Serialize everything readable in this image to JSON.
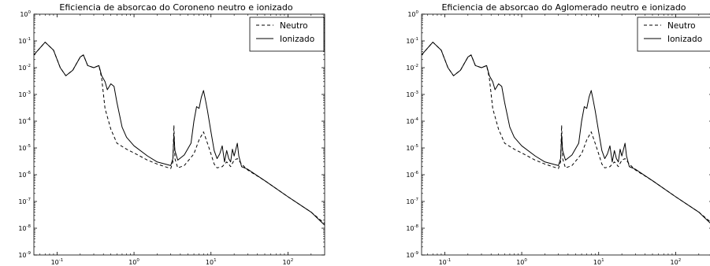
{
  "chart_data": [
    {
      "type": "line",
      "title": "Eficiencia de absorcao do Coroneno neutro e ionizado",
      "xscale": "log",
      "yscale": "log",
      "xlim": [
        0.05,
        300
      ],
      "ylim": [
        1e-09,
        1
      ],
      "grid": false,
      "legend": "top-right",
      "x_ticks": [
        {
          "base": "10",
          "exp": "-1"
        },
        {
          "base": "10",
          "exp": "0"
        },
        {
          "base": "10",
          "exp": "1"
        },
        {
          "base": "10",
          "exp": "2"
        }
      ],
      "y_ticks": [
        {
          "base": "10",
          "exp": "0"
        },
        {
          "base": "10",
          "exp": "-1"
        },
        {
          "base": "10",
          "exp": "-2"
        },
        {
          "base": "10",
          "exp": "-3"
        },
        {
          "base": "10",
          "exp": "-4"
        },
        {
          "base": "10",
          "exp": "-5"
        },
        {
          "base": "10",
          "exp": "-6"
        },
        {
          "base": "10",
          "exp": "-7"
        },
        {
          "base": "10",
          "exp": "-8"
        },
        {
          "base": "10",
          "exp": "-9"
        }
      ],
      "series": [
        {
          "name": "Neutro",
          "style": "dashed",
          "points": [
            [
              0.05,
              0.03
            ],
            [
              0.07,
              0.09
            ],
            [
              0.09,
              0.045
            ],
            [
              0.11,
              0.01
            ],
            [
              0.13,
              0.005
            ],
            [
              0.16,
              0.008
            ],
            [
              0.2,
              0.025
            ],
            [
              0.22,
              0.03
            ],
            [
              0.25,
              0.012
            ],
            [
              0.3,
              0.01
            ],
            [
              0.35,
              0.012
            ],
            [
              0.38,
              0.004
            ],
            [
              0.42,
              0.0003
            ],
            [
              0.5,
              5e-05
            ],
            [
              0.6,
              1.5e-05
            ],
            [
              0.8,
              9e-06
            ],
            [
              1.0,
              6.5e-06
            ],
            [
              1.5,
              3.5e-06
            ],
            [
              2.0,
              2.5e-06
            ],
            [
              3.0,
              1.7e-06
            ],
            [
              3.2,
              3e-06
            ],
            [
              3.3,
              7e-05
            ],
            [
              3.4,
              4e-06
            ],
            [
              3.7,
              1.8e-06
            ],
            [
              4.5,
              2.2e-06
            ],
            [
              6.0,
              6e-06
            ],
            [
              7.0,
              2e-05
            ],
            [
              8.0,
              4e-05
            ],
            [
              9.0,
              1.5e-05
            ],
            [
              10,
              6e-06
            ],
            [
              11,
              2.5e-06
            ],
            [
              12,
              1.8e-06
            ],
            [
              14,
              2e-06
            ],
            [
              16,
              3e-06
            ],
            [
              17,
              2.5e-06
            ],
            [
              18,
              2e-06
            ],
            [
              20,
              3.5e-06
            ],
            [
              22,
              4e-06
            ],
            [
              25,
              2.5e-06
            ],
            [
              30,
              1.5e-06
            ],
            [
              50,
              6e-07
            ],
            [
              100,
              1.5e-07
            ],
            [
              200,
              4e-08
            ],
            [
              300,
              1.5e-08
            ]
          ]
        },
        {
          "name": "Ionizado",
          "style": "solid",
          "points": [
            [
              0.05,
              0.03
            ],
            [
              0.07,
              0.09
            ],
            [
              0.09,
              0.045
            ],
            [
              0.11,
              0.01
            ],
            [
              0.13,
              0.005
            ],
            [
              0.16,
              0.008
            ],
            [
              0.2,
              0.025
            ],
            [
              0.22,
              0.03
            ],
            [
              0.25,
              0.012
            ],
            [
              0.3,
              0.01
            ],
            [
              0.35,
              0.012
            ],
            [
              0.38,
              0.005
            ],
            [
              0.42,
              0.003
            ],
            [
              0.45,
              0.0015
            ],
            [
              0.5,
              0.0025
            ],
            [
              0.55,
              0.002
            ],
            [
              0.6,
              0.0005
            ],
            [
              0.7,
              6e-05
            ],
            [
              0.8,
              2.5e-05
            ],
            [
              1.0,
              1.2e-05
            ],
            [
              1.5,
              5e-06
            ],
            [
              2.0,
              3e-06
            ],
            [
              3.0,
              2.2e-06
            ],
            [
              3.2,
              4e-06
            ],
            [
              3.3,
              3e-05
            ],
            [
              3.4,
              8e-06
            ],
            [
              3.7,
              3.5e-06
            ],
            [
              4.5,
              5.5e-06
            ],
            [
              5.5,
              1.5e-05
            ],
            [
              6.0,
              0.0001
            ],
            [
              6.5,
              0.00035
            ],
            [
              7.0,
              0.0003
            ],
            [
              7.5,
              0.0008
            ],
            [
              8.0,
              0.0014
            ],
            [
              8.5,
              0.0006
            ],
            [
              9.0,
              0.00025
            ],
            [
              10,
              4e-05
            ],
            [
              11,
              8e-06
            ],
            [
              12,
              4e-06
            ],
            [
              13,
              6e-06
            ],
            [
              14,
              1.2e-05
            ],
            [
              15,
              3e-06
            ],
            [
              16,
              8e-06
            ],
            [
              17,
              4e-06
            ],
            [
              18,
              3e-06
            ],
            [
              19,
              9e-06
            ],
            [
              20,
              5e-06
            ],
            [
              22,
              1.5e-05
            ],
            [
              23,
              5e-06
            ],
            [
              25,
              2e-06
            ],
            [
              30,
              1.6e-06
            ],
            [
              50,
              6e-07
            ],
            [
              100,
              1.5e-07
            ],
            [
              200,
              4e-08
            ],
            [
              300,
              1.3e-08
            ]
          ]
        }
      ]
    },
    {
      "type": "line",
      "title": "Eficiencia de absorcao do Aglomerado neutro e ionizado",
      "xscale": "log",
      "yscale": "log",
      "xlim": [
        0.05,
        300
      ],
      "ylim": [
        1e-09,
        1
      ],
      "grid": false,
      "legend": "top-right",
      "x_ticks": [
        {
          "base": "10",
          "exp": "-1"
        },
        {
          "base": "10",
          "exp": "0"
        },
        {
          "base": "10",
          "exp": "1"
        },
        {
          "base": "10",
          "exp": "2"
        }
      ],
      "y_ticks": [
        {
          "base": "10",
          "exp": "0"
        },
        {
          "base": "10",
          "exp": "-1"
        },
        {
          "base": "10",
          "exp": "-2"
        },
        {
          "base": "10",
          "exp": "-3"
        },
        {
          "base": "10",
          "exp": "-4"
        },
        {
          "base": "10",
          "exp": "-5"
        },
        {
          "base": "10",
          "exp": "-6"
        },
        {
          "base": "10",
          "exp": "-7"
        },
        {
          "base": "10",
          "exp": "-8"
        },
        {
          "base": "10",
          "exp": "-9"
        }
      ],
      "series": [
        {
          "name": "Neutro",
          "style": "dashed",
          "points": [
            [
              0.05,
              0.03
            ],
            [
              0.07,
              0.09
            ],
            [
              0.09,
              0.045
            ],
            [
              0.11,
              0.01
            ],
            [
              0.13,
              0.005
            ],
            [
              0.16,
              0.008
            ],
            [
              0.2,
              0.025
            ],
            [
              0.22,
              0.03
            ],
            [
              0.25,
              0.012
            ],
            [
              0.3,
              0.01
            ],
            [
              0.35,
              0.012
            ],
            [
              0.38,
              0.004
            ],
            [
              0.42,
              0.0003
            ],
            [
              0.5,
              5e-05
            ],
            [
              0.6,
              1.5e-05
            ],
            [
              0.8,
              9e-06
            ],
            [
              1.0,
              6.5e-06
            ],
            [
              1.5,
              3.5e-06
            ],
            [
              2.0,
              2.5e-06
            ],
            [
              3.0,
              1.7e-06
            ],
            [
              3.2,
              3e-06
            ],
            [
              3.3,
              7e-05
            ],
            [
              3.4,
              4e-06
            ],
            [
              3.7,
              1.8e-06
            ],
            [
              4.5,
              2.2e-06
            ],
            [
              6.0,
              6e-06
            ],
            [
              7.0,
              2e-05
            ],
            [
              8.0,
              4e-05
            ],
            [
              9.0,
              1.5e-05
            ],
            [
              10,
              6e-06
            ],
            [
              11,
              2.5e-06
            ],
            [
              12,
              1.8e-06
            ],
            [
              14,
              2e-06
            ],
            [
              16,
              3e-06
            ],
            [
              17,
              2.5e-06
            ],
            [
              18,
              2e-06
            ],
            [
              20,
              3.5e-06
            ],
            [
              22,
              4e-06
            ],
            [
              25,
              2.5e-06
            ],
            [
              30,
              1.5e-06
            ],
            [
              50,
              6e-07
            ],
            [
              100,
              1.5e-07
            ],
            [
              200,
              4e-08
            ],
            [
              300,
              1.5e-08
            ]
          ]
        },
        {
          "name": "Ionizado",
          "style": "solid",
          "points": [
            [
              0.05,
              0.03
            ],
            [
              0.07,
              0.09
            ],
            [
              0.09,
              0.045
            ],
            [
              0.11,
              0.01
            ],
            [
              0.13,
              0.005
            ],
            [
              0.16,
              0.008
            ],
            [
              0.2,
              0.025
            ],
            [
              0.22,
              0.03
            ],
            [
              0.25,
              0.012
            ],
            [
              0.3,
              0.01
            ],
            [
              0.35,
              0.012
            ],
            [
              0.38,
              0.005
            ],
            [
              0.42,
              0.003
            ],
            [
              0.45,
              0.0015
            ],
            [
              0.5,
              0.0025
            ],
            [
              0.55,
              0.002
            ],
            [
              0.6,
              0.0005
            ],
            [
              0.7,
              6e-05
            ],
            [
              0.8,
              2.5e-05
            ],
            [
              1.0,
              1.2e-05
            ],
            [
              1.5,
              5e-06
            ],
            [
              2.0,
              3e-06
            ],
            [
              3.0,
              2.2e-06
            ],
            [
              3.2,
              4e-06
            ],
            [
              3.3,
              3e-05
            ],
            [
              3.4,
              8e-06
            ],
            [
              3.7,
              3.5e-06
            ],
            [
              4.5,
              5.5e-06
            ],
            [
              5.5,
              1.5e-05
            ],
            [
              6.0,
              0.0001
            ],
            [
              6.5,
              0.00035
            ],
            [
              7.0,
              0.0003
            ],
            [
              7.5,
              0.0008
            ],
            [
              8.0,
              0.0014
            ],
            [
              8.5,
              0.0006
            ],
            [
              9.0,
              0.00025
            ],
            [
              10,
              4e-05
            ],
            [
              11,
              8e-06
            ],
            [
              12,
              4e-06
            ],
            [
              13,
              6e-06
            ],
            [
              14,
              1.2e-05
            ],
            [
              15,
              3e-06
            ],
            [
              16,
              8e-06
            ],
            [
              17,
              4e-06
            ],
            [
              18,
              3e-06
            ],
            [
              19,
              9e-06
            ],
            [
              20,
              5e-06
            ],
            [
              22,
              1.5e-05
            ],
            [
              23,
              5e-06
            ],
            [
              25,
              2e-06
            ],
            [
              30,
              1.6e-06
            ],
            [
              50,
              6e-07
            ],
            [
              100,
              1.5e-07
            ],
            [
              200,
              4e-08
            ],
            [
              300,
              1.3e-08
            ]
          ]
        }
      ]
    }
  ]
}
